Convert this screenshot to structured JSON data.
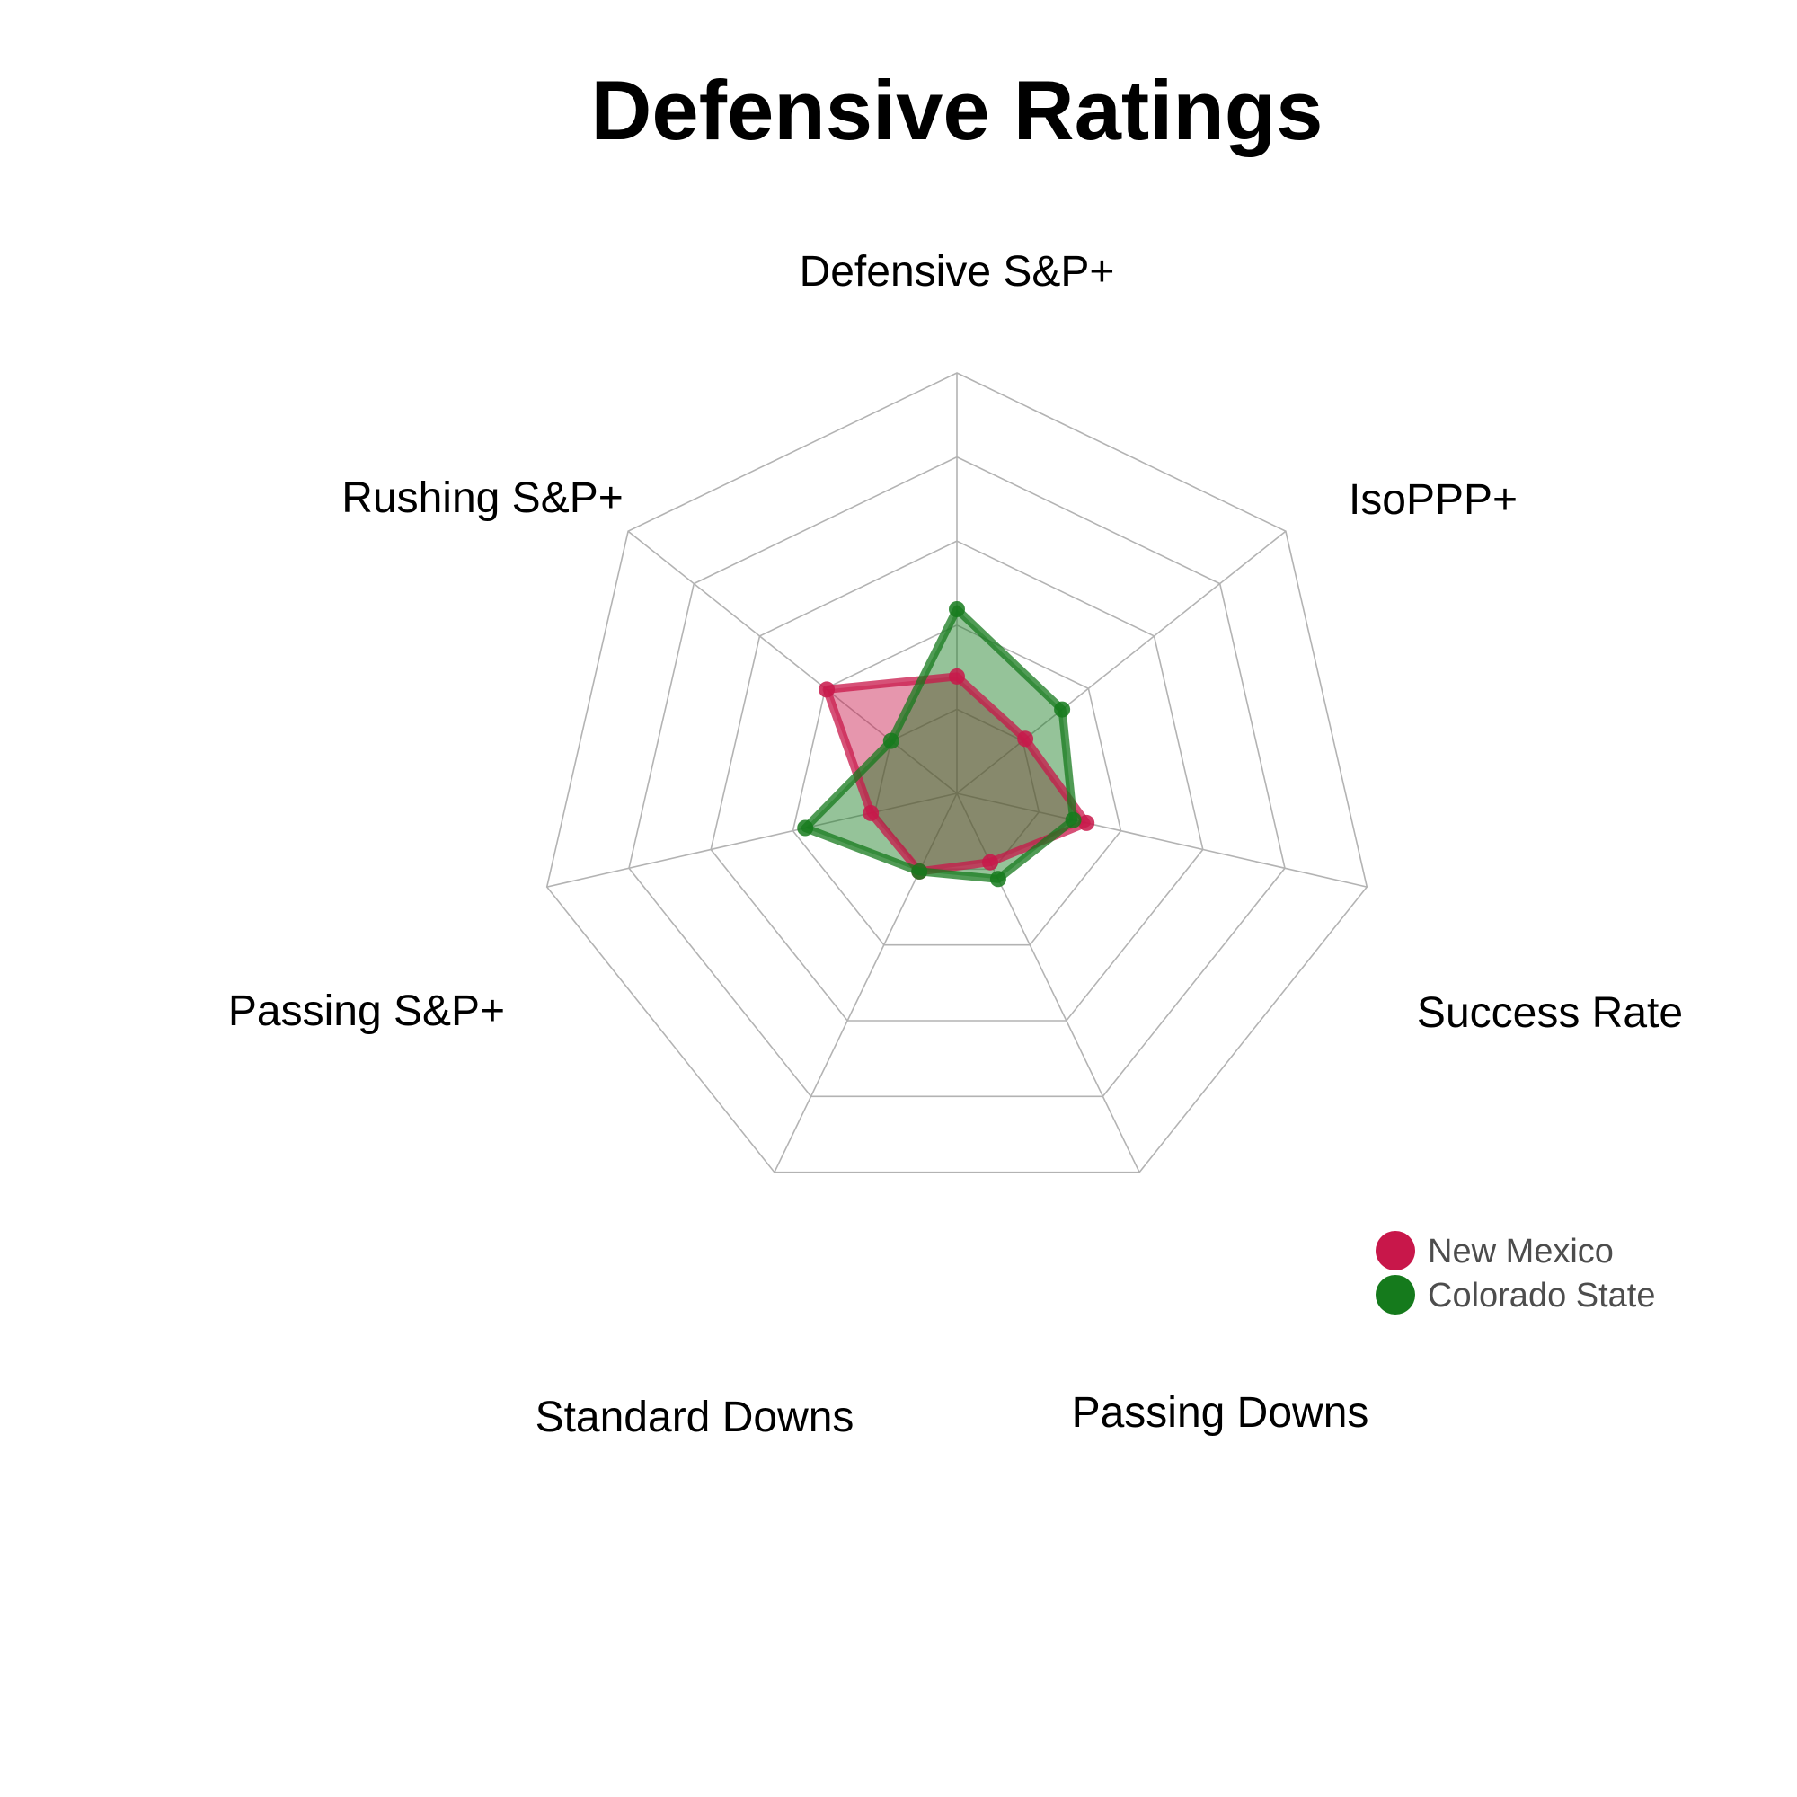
{
  "chart_data": {
    "type": "radar",
    "title": "Defensive Ratings",
    "axes": [
      "Defensive S&P+",
      "IsoPPP+",
      "Success Rate",
      "Passing Downs",
      "Standard Downs",
      "Passing S&P+",
      "Rushing S&P+"
    ],
    "rlim": [
      0,
      5
    ],
    "grid_levels": 5,
    "series": [
      {
        "name": "New Mexico",
        "color": "#c8174a",
        "values": [
          1.39,
          1.04,
          1.58,
          0.91,
          1.03,
          1.05,
          1.98
        ]
      },
      {
        "name": "Colorado State",
        "color": "#157a1c",
        "values": [
          2.19,
          1.6,
          1.42,
          1.13,
          1.03,
          1.85,
          1.0
        ]
      }
    ],
    "legend": {
      "position": "bottom-right",
      "entries": [
        "New Mexico",
        "Colorado State"
      ]
    }
  }
}
